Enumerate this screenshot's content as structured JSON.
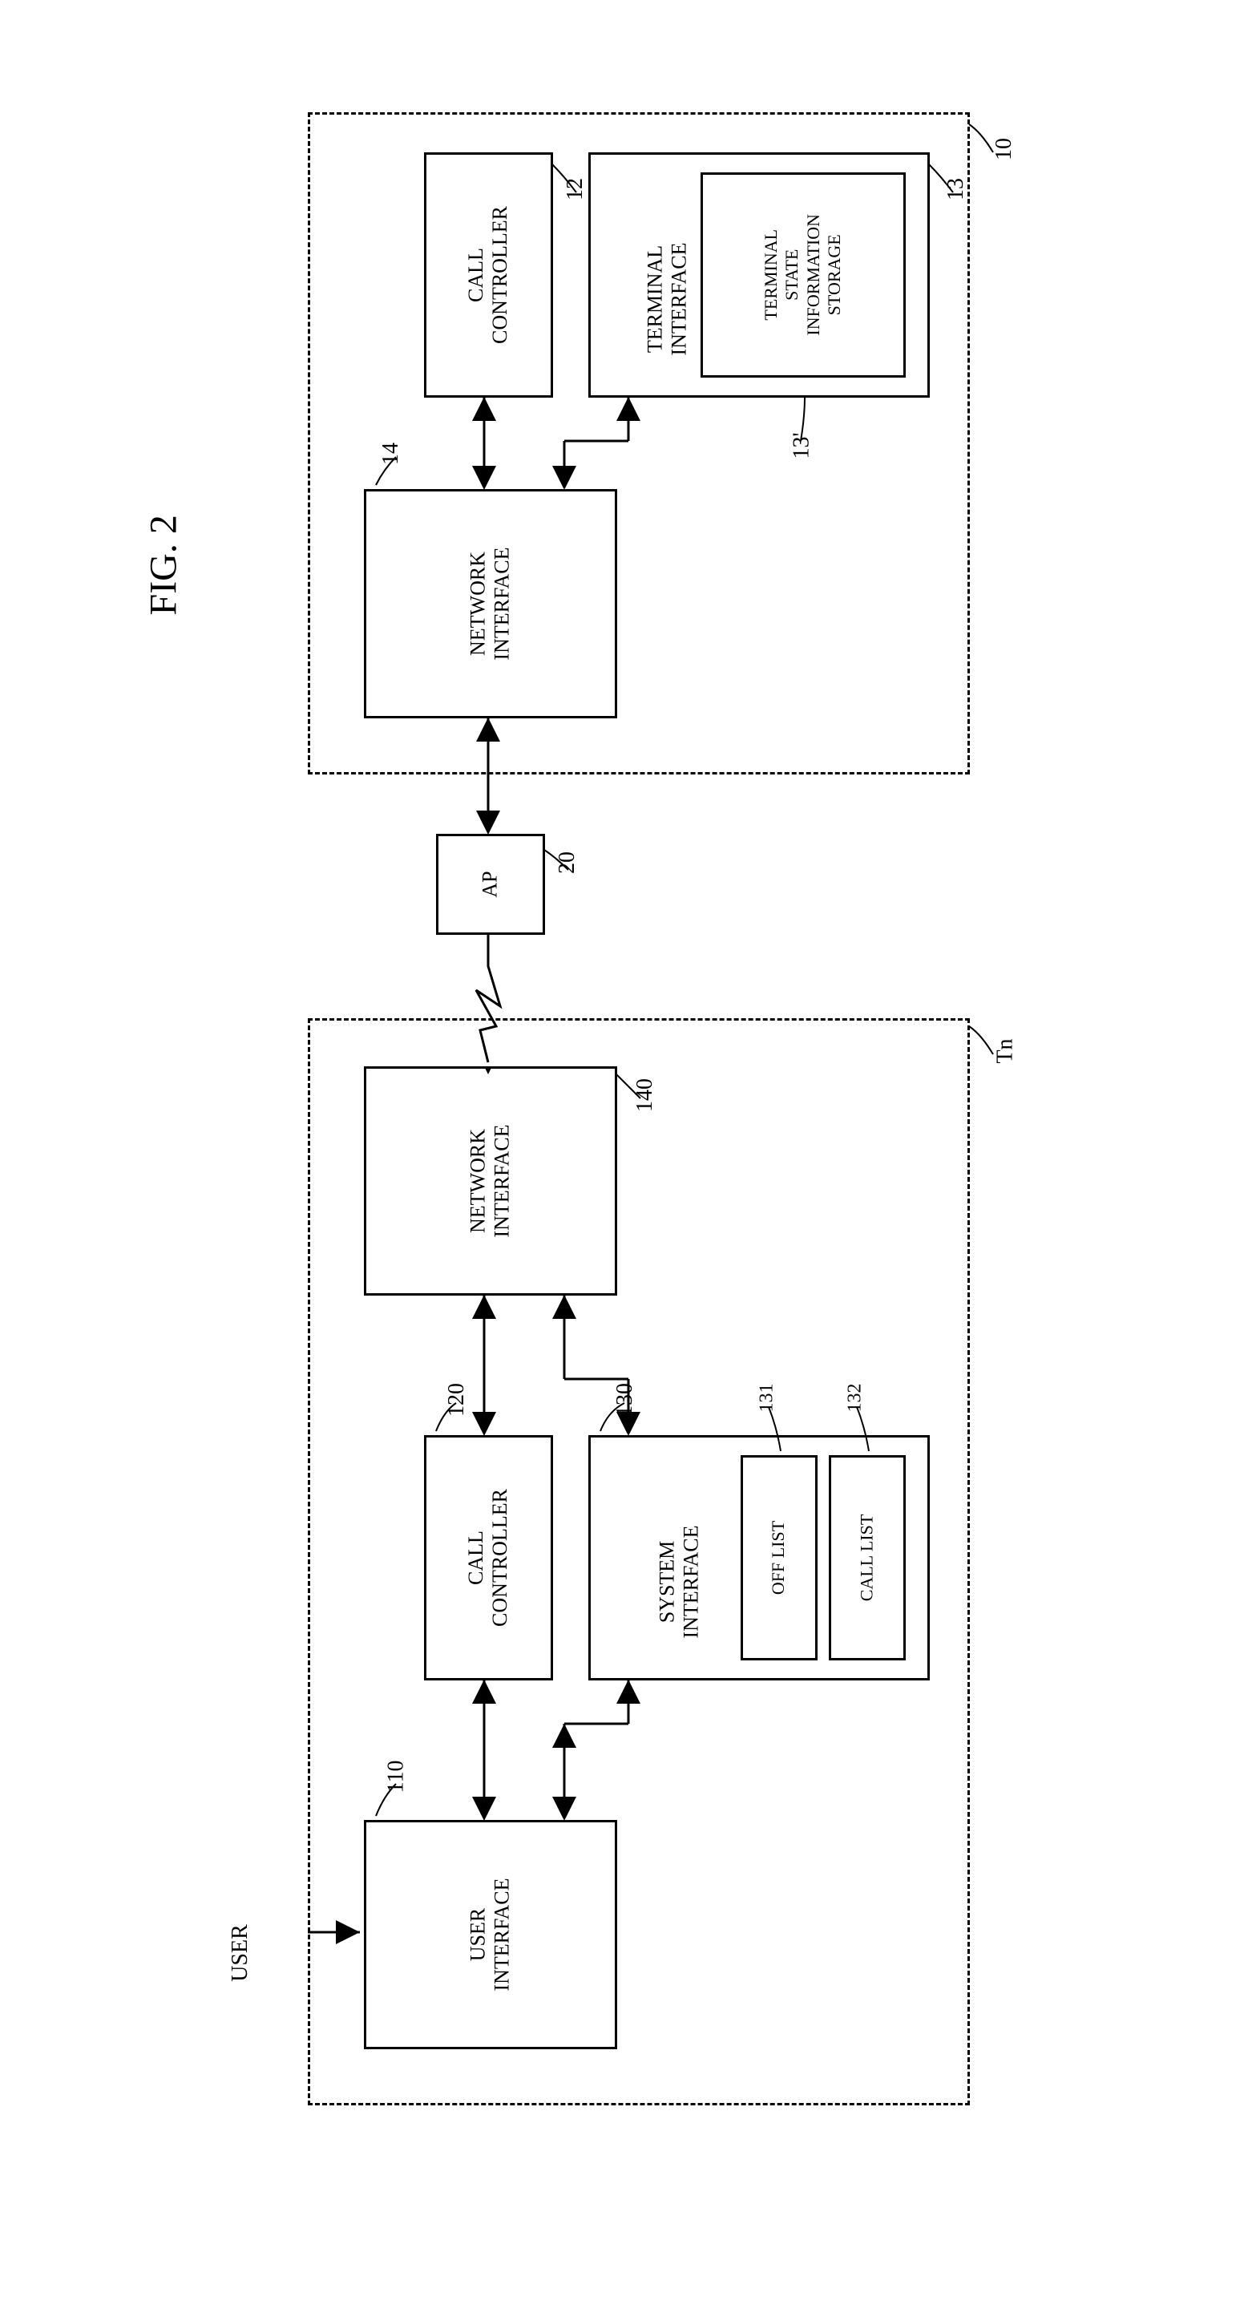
{
  "figure": {
    "title": "FIG. 2",
    "title_fontsize": 48,
    "background_color": "#ffffff",
    "stroke_color": "#000000",
    "box_border_width": 3,
    "dashed_border_width": 3,
    "font_family": "Times New Roman",
    "box_fontsize": 26,
    "label_fontsize": 28,
    "arrow_stroke_width": 3
  },
  "terminal_block": {
    "ref_label": "Tn",
    "user_label": "USER",
    "boxes": {
      "user_interface": {
        "text": "USER\nINTERFACE",
        "ref": "110"
      },
      "call_controller": {
        "text": "CALL\nCONTROLLER",
        "ref": "120"
      },
      "system_interface": {
        "text": "SYSTEM\nINTERFACE",
        "ref": "130"
      },
      "off_list": {
        "text": "OFF LIST",
        "ref": "131"
      },
      "call_list": {
        "text": "CALL LIST",
        "ref": "132"
      },
      "network_interface": {
        "text": "NETWORK\nINTERFACE",
        "ref": "140"
      }
    }
  },
  "ap_block": {
    "text": "AP",
    "ref": "20"
  },
  "server_block": {
    "ref_label": "10",
    "boxes": {
      "network_interface": {
        "text": "NETWORK\nINTERFACE",
        "ref": "14"
      },
      "call_controller": {
        "text": "CALL\nCONTROLLER",
        "ref": "12"
      },
      "terminal_interface": {
        "text": "TERMINAL\nINTERFACE",
        "ref": "13"
      },
      "terminal_state_storage": {
        "text": "TERMINAL\nSTATE\nINFORMATION\nSTORAGE",
        "ref": "13'"
      }
    }
  }
}
